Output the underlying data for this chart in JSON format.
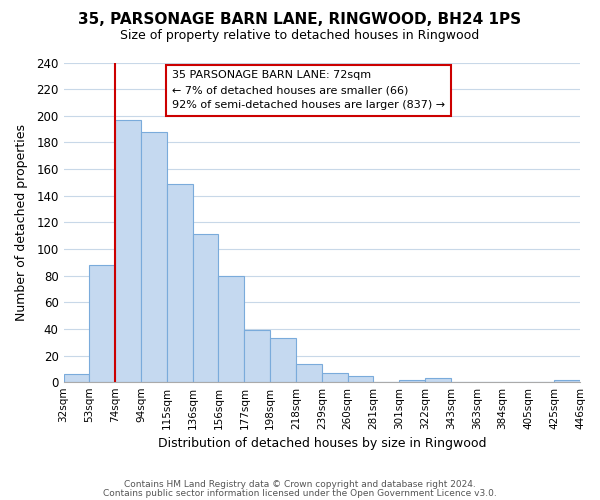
{
  "title": "35, PARSONAGE BARN LANE, RINGWOOD, BH24 1PS",
  "subtitle": "Size of property relative to detached houses in Ringwood",
  "xlabel": "Distribution of detached houses by size in Ringwood",
  "ylabel": "Number of detached properties",
  "bin_edges": [
    "32sqm",
    "53sqm",
    "74sqm",
    "94sqm",
    "115sqm",
    "136sqm",
    "156sqm",
    "177sqm",
    "198sqm",
    "218sqm",
    "239sqm",
    "260sqm",
    "281sqm",
    "301sqm",
    "322sqm",
    "343sqm",
    "363sqm",
    "384sqm",
    "405sqm",
    "425sqm",
    "446sqm"
  ],
  "bar_heights": [
    6,
    88,
    197,
    188,
    149,
    111,
    80,
    39,
    33,
    14,
    7,
    5,
    0,
    2,
    3,
    0,
    0,
    0,
    0,
    2
  ],
  "bar_color": "#c5d9f0",
  "bar_edge_color": "#7aabdb",
  "highlight_line_color": "#cc0000",
  "annotation_text_line1": "35 PARSONAGE BARN LANE: 72sqm",
  "annotation_text_line2": "← 7% of detached houses are smaller (66)",
  "annotation_text_line3": "92% of semi-detached houses are larger (837) →",
  "annotation_box_color": "#ffffff",
  "annotation_box_edge_color": "#cc0000",
  "ylim": [
    0,
    240
  ],
  "yticks": [
    0,
    20,
    40,
    60,
    80,
    100,
    120,
    140,
    160,
    180,
    200,
    220,
    240
  ],
  "footer_line1": "Contains HM Land Registry data © Crown copyright and database right 2024.",
  "footer_line2": "Contains public sector information licensed under the Open Government Licence v3.0.",
  "background_color": "#ffffff",
  "grid_color": "#c8d8e8"
}
